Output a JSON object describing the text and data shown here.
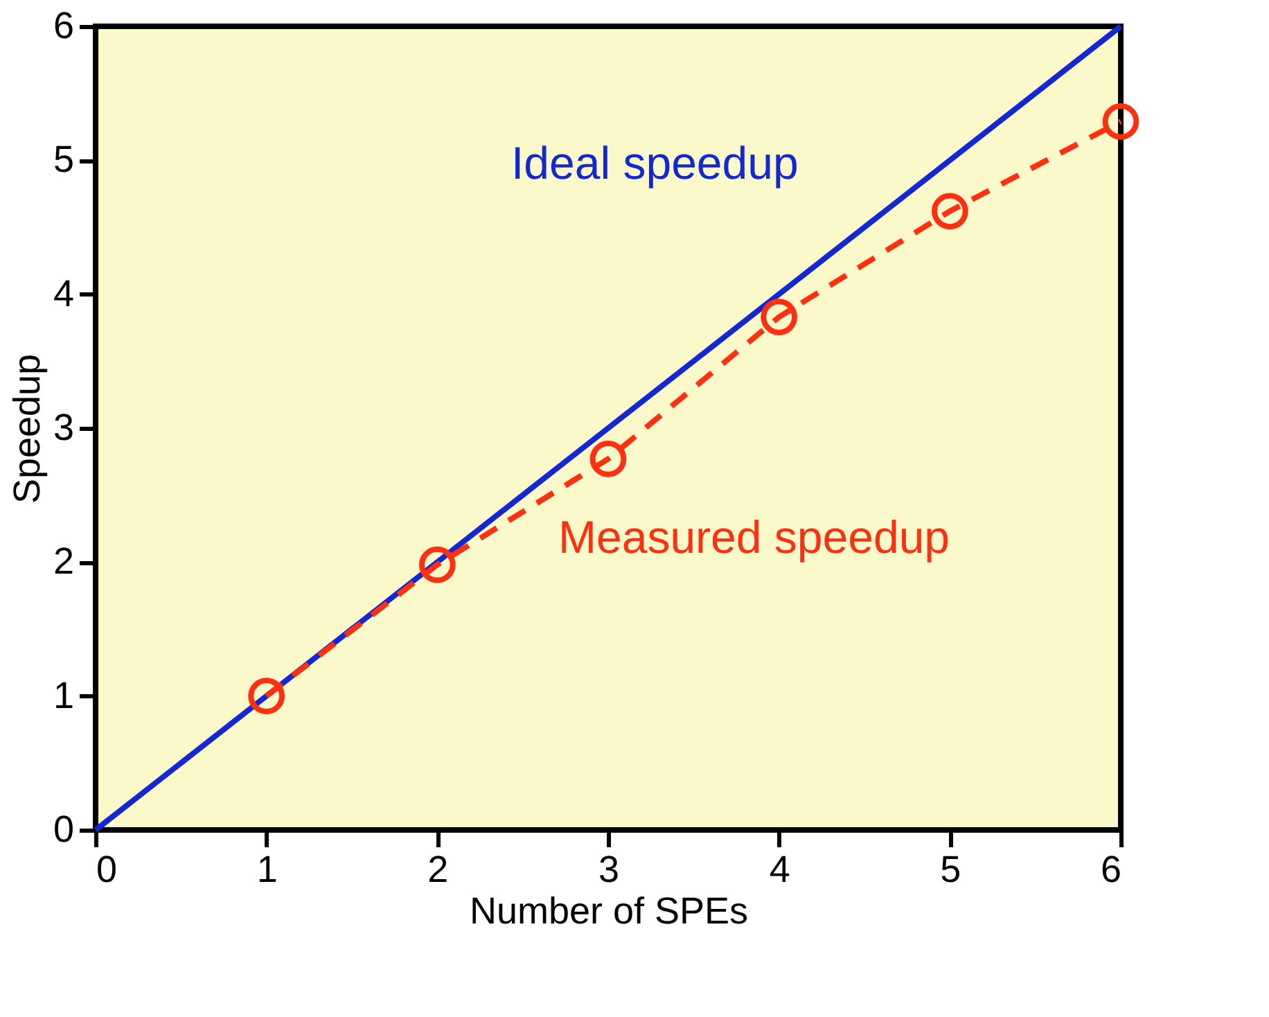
{
  "chart_data": {
    "type": "line",
    "xlabel": "Number of SPEs",
    "ylabel": "Speedup",
    "xlim": [
      0,
      6
    ],
    "ylim": [
      0,
      6
    ],
    "xticks": [
      0,
      1,
      2,
      3,
      4,
      5,
      6
    ],
    "yticks": [
      0,
      1,
      2,
      3,
      4,
      5,
      6
    ],
    "grid": false,
    "legend": false,
    "series": [
      {
        "name": "Ideal speedup",
        "color": "#1428d2",
        "x": [
          0,
          6
        ],
        "values": [
          0,
          6
        ],
        "marker": "none",
        "line_style": "solid"
      },
      {
        "name": "Measured speedup",
        "color": "#ff3010",
        "x": [
          1,
          2,
          3,
          4,
          5,
          6
        ],
        "values": [
          1.0,
          1.98,
          2.77,
          3.83,
          4.62,
          5.29
        ],
        "marker": "circle",
        "line_style": "dashed"
      }
    ]
  }
}
